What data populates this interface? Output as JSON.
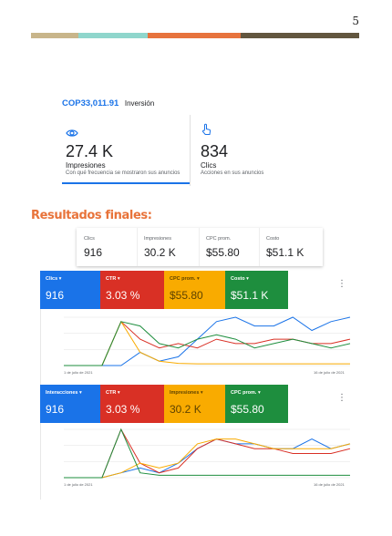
{
  "page_number": "5",
  "stripe_colors": [
    "#c8b58a",
    "#8fd6cc",
    "#e7733d",
    "#62563f"
  ],
  "investment": {
    "amount": "COP33,011.91",
    "label": "Inversión"
  },
  "metrics": [
    {
      "icon": "eye-icon",
      "value": "27.4 K",
      "title": "Impresiones",
      "description": "Con qué frecuencia se mostraron sus anuncios"
    },
    {
      "icon": "cursor-hand-icon",
      "value": "834",
      "title": "Clics",
      "description": "Acciones en sus anuncios"
    }
  ],
  "section_title": "Resultados finales:",
  "summary": [
    {
      "label": "Clics",
      "value": "916"
    },
    {
      "label": "Impresiones",
      "value": "30.2 K"
    },
    {
      "label": "CPC prom.",
      "value": "$55.80"
    },
    {
      "label": "Costo",
      "value": "$51.1 K"
    }
  ],
  "colors": {
    "blue": "#1a73e8",
    "red": "#d93025",
    "yellow": "#f9ab00",
    "green": "#1e8e3e",
    "accent": "#e8733a"
  },
  "panel1": {
    "tiles": [
      {
        "label": "Clics",
        "value": "916",
        "color": "#1a73e8",
        "text_color": "#ffffff"
      },
      {
        "label": "CTR",
        "value": "3.03 %",
        "color": "#d93025",
        "text_color": "#ffffff"
      },
      {
        "label": "CPC prom.",
        "value": "$55.80",
        "color": "#f9ab00",
        "text_color": "#5f4300"
      },
      {
        "label": "Costo",
        "value": "$51.1 K",
        "color": "#1e8e3e",
        "text_color": "#ffffff"
      }
    ],
    "x_start": "1 de julio de 2021",
    "x_end": "16 de julio de 2021"
  },
  "panel2": {
    "tiles": [
      {
        "label": "Interacciones",
        "value": "916",
        "color": "#1a73e8",
        "text_color": "#ffffff"
      },
      {
        "label": "CTR",
        "value": "3.03 %",
        "color": "#d93025",
        "text_color": "#ffffff"
      },
      {
        "label": "Impresiones",
        "value": "30.2 K",
        "color": "#f9ab00",
        "text_color": "#5f4300"
      },
      {
        "label": "CPC prom.",
        "value": "$55.80",
        "color": "#1e8e3e",
        "text_color": "#ffffff"
      }
    ],
    "x_start": "1 de julio de 2021",
    "x_end": "16 de julio de 2021"
  },
  "chart_data": [
    {
      "type": "line",
      "x": [
        "1 de julio de 2021",
        "",
        "",
        "",
        "",
        "",
        "",
        "",
        "",
        "",
        "",
        "",
        "",
        "",
        "",
        "16 de julio de 2021"
      ],
      "series": [
        {
          "name": "Clics",
          "color": "#1a73e8",
          "values": [
            0,
            0,
            0,
            0,
            3,
            1,
            2,
            6,
            10,
            11,
            9,
            9,
            11,
            8,
            10,
            11
          ]
        },
        {
          "name": "CTR",
          "color": "#d93025",
          "values": [
            0,
            0,
            0,
            10,
            6,
            4,
            5,
            4,
            6,
            5,
            5,
            6,
            6,
            5,
            5,
            6
          ]
        },
        {
          "name": "CPC prom.",
          "color": "#f9ab00",
          "values": [
            0,
            0,
            0,
            10,
            3,
            1,
            0.5,
            0.4,
            0.4,
            0.4,
            0.4,
            0.4,
            0.4,
            0.4,
            0.4,
            0.4
          ]
        },
        {
          "name": "Costo",
          "color": "#1e8e3e",
          "values": [
            0,
            0,
            0,
            10,
            9,
            5,
            4,
            6,
            7,
            6,
            4,
            5,
            6,
            5,
            4,
            5
          ]
        }
      ]
    },
    {
      "type": "line",
      "x": [
        "1 de julio de 2021",
        "",
        "",
        "",
        "",
        "",
        "",
        "",
        "",
        "",
        "",
        "",
        "",
        "",
        "",
        "16 de julio de 2021"
      ],
      "series": [
        {
          "name": "Interacciones",
          "color": "#1a73e8",
          "values": [
            0,
            0,
            0,
            1,
            2,
            1,
            3,
            6,
            8,
            7,
            7,
            6,
            6,
            8,
            6,
            7
          ]
        },
        {
          "name": "CTR",
          "color": "#d93025",
          "values": [
            0,
            0,
            0,
            10,
            3,
            1,
            2,
            6,
            8,
            7,
            6,
            6,
            5,
            5,
            5,
            6
          ]
        },
        {
          "name": "Impresiones",
          "color": "#f9ab00",
          "values": [
            0,
            0,
            0,
            1,
            3,
            2,
            3,
            7,
            8,
            8,
            7,
            6,
            6,
            6,
            6,
            7
          ]
        },
        {
          "name": "CPC prom.",
          "color": "#1e8e3e",
          "values": [
            0,
            0,
            0,
            10,
            1,
            0.5,
            0.5,
            0.5,
            0.5,
            0.5,
            0.5,
            0.5,
            0.5,
            0.5,
            0.5,
            0.5
          ]
        }
      ]
    }
  ]
}
